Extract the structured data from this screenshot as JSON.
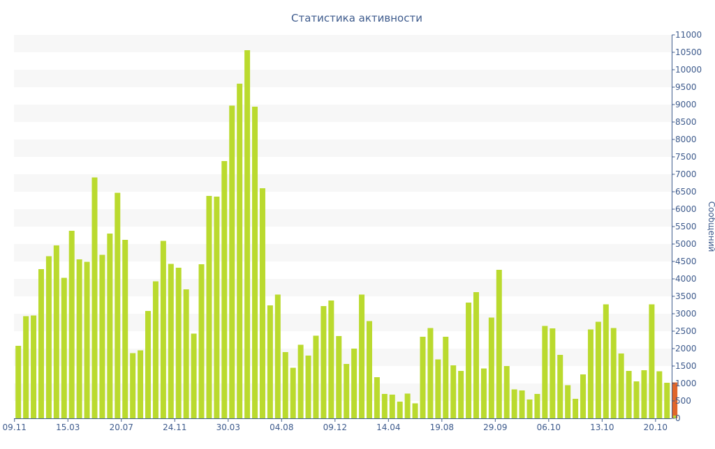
{
  "chart_data": {
    "type": "bar",
    "title": "Статистика активности",
    "xlabel": "",
    "ylabel": "Сообщений",
    "ylim": [
      0,
      11000
    ],
    "ytick_step": 500,
    "y_axis_side": "right",
    "grid": "horizontal alternating bands",
    "x_tick_labels": [
      "09.11",
      "15.03",
      "20.07",
      "24.11",
      "30.03",
      "04.08",
      "09.12",
      "14.04",
      "19.08",
      "29.09",
      "06.10",
      "13.10",
      "20.10"
    ],
    "x_tick_bar_index": [
      0,
      7,
      14,
      21,
      28,
      35,
      42,
      49,
      56,
      63,
      70,
      77,
      84
    ],
    "colors": {
      "bar": "#bada2e",
      "current_bar": "#e0652b",
      "axis": "#3d5a8c",
      "band": "#f7f7f7",
      "title": "#3d5a8c"
    },
    "values": [
      2080,
      2930,
      2950,
      4280,
      4650,
      4960,
      4030,
      5380,
      4560,
      4490,
      6910,
      4690,
      5300,
      6470,
      5120,
      1870,
      1950,
      3080,
      3930,
      5090,
      4430,
      4320,
      3700,
      2430,
      4420,
      6380,
      6360,
      7380,
      8970,
      9600,
      10560,
      8940,
      6600,
      3240,
      3550,
      1900,
      1450,
      2110,
      1800,
      2370,
      3220,
      3380,
      2360,
      1560,
      2000,
      3550,
      2790,
      1180,
      700,
      680,
      480,
      710,
      430,
      2340,
      2590,
      1690,
      2340,
      1520,
      1360,
      3320,
      3620,
      1430,
      2890,
      4260,
      1500,
      830,
      800,
      540,
      700,
      2650,
      2580,
      1820,
      950,
      560,
      1260,
      2550,
      2770,
      3270,
      2590,
      1860,
      1360,
      1060,
      1380,
      3270,
      1350,
      1020
    ],
    "current_bar": {
      "value": 1030,
      "inner_value": 80
    }
  }
}
